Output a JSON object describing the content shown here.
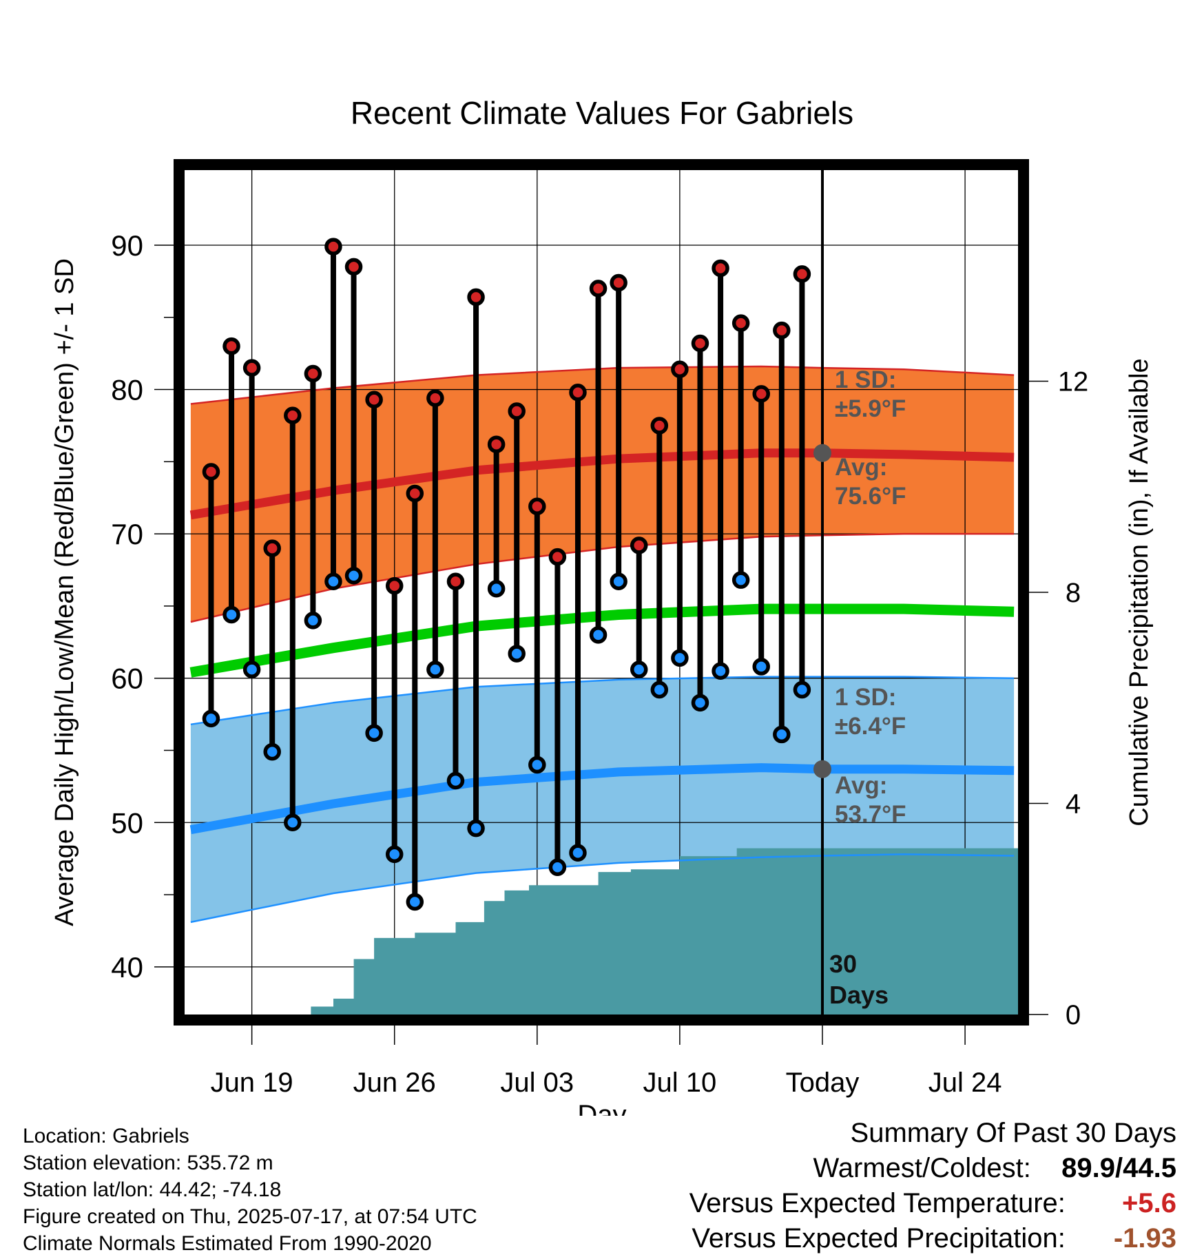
{
  "chart_data": {
    "type": "line",
    "title": "Recent Climate Values For Gabriels",
    "xlabel": "Day",
    "ylabel": "Average Daily High/Low/Mean (Red/Blue/Green) +/- 1 SD",
    "ylabel_right": "Cumulative Precipitation (in), If Available",
    "x_tick_labels": [
      "Jun 19",
      "Jun 26",
      "Jul 03",
      "Jul 10",
      "Today",
      "Jul 24"
    ],
    "x_tick_days": [
      -28,
      -21,
      -14,
      -7,
      0,
      7
    ],
    "xlim_days_from_today": [
      -31.3,
      9.6
    ],
    "ylim": [
      36.7,
      95.2
    ],
    "y_ticks": [
      40,
      50,
      60,
      70,
      80,
      90
    ],
    "y_minor_ticks": [
      45,
      55,
      65,
      75,
      85
    ],
    "y2lim": [
      0,
      16
    ],
    "y2_ticks": [
      0,
      4,
      8,
      12
    ],
    "grid": true,
    "today_label": "30\nDays",
    "daily_days_from_today": [
      -30,
      -29,
      -28,
      -27,
      -26,
      -25,
      -24,
      -23,
      -22,
      -21,
      -20,
      -19,
      -18,
      -17,
      -16,
      -15,
      -14,
      -13,
      -12,
      -11,
      -10,
      -9,
      -8,
      -7,
      -6,
      -5,
      -4,
      -3,
      -2,
      -1
    ],
    "daily_high": [
      74.3,
      83.0,
      81.5,
      69.0,
      78.2,
      81.1,
      89.9,
      88.5,
      79.3,
      66.4,
      72.8,
      79.4,
      66.7,
      86.4,
      76.2,
      78.5,
      71.9,
      68.4,
      79.8,
      87.0,
      87.4,
      69.2,
      77.5,
      81.4,
      83.2,
      88.4,
      84.6,
      79.7,
      84.1,
      88.0
    ],
    "daily_low": [
      57.2,
      64.4,
      60.6,
      54.9,
      50.0,
      64.0,
      66.7,
      67.1,
      56.2,
      47.8,
      44.5,
      60.6,
      52.9,
      49.6,
      66.2,
      61.7,
      54.0,
      46.9,
      47.9,
      63.0,
      66.7,
      60.6,
      59.2,
      61.4,
      58.3,
      60.5,
      66.8,
      60.8,
      56.1,
      59.2
    ],
    "normals_days_from_today": [
      -31,
      -24,
      -17,
      -10,
      -3,
      0,
      4,
      9.4
    ],
    "normal_high_avg": [
      71.3,
      73.0,
      74.4,
      75.2,
      75.6,
      75.6,
      75.5,
      75.3
    ],
    "normal_high_plus_sd": [
      79.0,
      80.1,
      81.0,
      81.5,
      81.6,
      81.5,
      81.4,
      81.0
    ],
    "normal_high_minus_sd": [
      63.9,
      66.2,
      67.9,
      69.1,
      69.8,
      69.9,
      70.0,
      70.0
    ],
    "normal_mean": [
      60.4,
      62.1,
      63.6,
      64.4,
      64.8,
      64.8,
      64.8,
      64.6
    ],
    "normal_low_avg": [
      49.5,
      51.3,
      52.8,
      53.5,
      53.8,
      53.7,
      53.7,
      53.6
    ],
    "normal_low_plus_sd": [
      56.8,
      58.3,
      59.4,
      59.9,
      60.1,
      60.1,
      60.1,
      60.0
    ],
    "normal_low_minus_sd": [
      43.1,
      45.1,
      46.5,
      47.2,
      47.6,
      47.7,
      47.8,
      47.7
    ],
    "high_sd_label": "1 SD:\n±5.9°F",
    "high_avg_label": "Avg:\n75.6°F",
    "low_sd_label": "1 SD:\n±6.4°F",
    "low_avg_label": "Avg:\n53.7°F",
    "precip_steps_days_from_today": [
      -31.3,
      -26.4,
      -25.1,
      -24,
      -23,
      -22,
      -20,
      -18,
      -16.6,
      -15.6,
      -14.4,
      -12,
      -11,
      -9.4,
      -7,
      -6,
      -5.3,
      -4.2,
      9.6
    ],
    "precip_cumulative": [
      0,
      0,
      0.15,
      0.3,
      1.05,
      1.45,
      1.55,
      1.75,
      2.15,
      2.35,
      2.45,
      2.45,
      2.7,
      2.75,
      3.0,
      3.0,
      3.0,
      3.15,
      3.15
    ],
    "colors": {
      "high_band": "#f47a32",
      "high_line": "#d42424",
      "high_band_edge": "#d42424",
      "low_band": "#84c3e8",
      "low_line": "#1e90ff",
      "low_band_edge": "#1e90ff",
      "mean_line": "#00cc00",
      "precip": "#4a9aa3",
      "high_dot": "#d42424",
      "low_dot": "#1e90ff",
      "label_text": "#555555"
    }
  },
  "info": {
    "location": "Location: Gabriels",
    "elevation": "Station elevation: 535.72 m",
    "latlon": "Station lat/lon: 44.42; -74.18",
    "created": "Figure created on Thu, 2025-07-17, at 07:54 UTC",
    "normals": "Climate Normals Estimated From 1990-2020"
  },
  "summary": {
    "heading": "Summary Of Past 30 Days",
    "warm_cold_label": "Warmest/Coldest:",
    "warm_cold_value": "89.9/44.5",
    "temp_label": "Versus Expected Temperature:",
    "temp_value": "+5.6",
    "temp_color": "#cc2222",
    "precip_label": "Versus Expected Precipitation:",
    "precip_value": "-1.93",
    "precip_color": "#a0522d"
  }
}
